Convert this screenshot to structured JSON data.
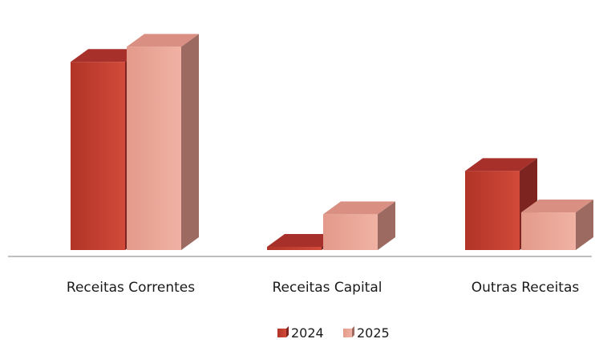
{
  "chart_data": {
    "type": "bar",
    "categories": [
      "Receitas Correntes",
      "Receitas Capital",
      "Outras Receitas"
    ],
    "series": [
      {
        "name": "2024",
        "values": [
          100,
          1.5,
          42
        ]
      },
      {
        "name": "2025",
        "values": [
          108,
          19,
          20
        ]
      }
    ],
    "title": "",
    "xlabel": "",
    "ylabel": "",
    "ylim": [
      0,
      115
    ],
    "legend_position": "bottom",
    "grid": false,
    "colors": {
      "2024": {
        "front": "#c0392b",
        "top": "#a8302a",
        "side": "#7d2320"
      },
      "2025": {
        "front": "#e8a394",
        "top": "#d98f82",
        "side": "#9c6a61"
      }
    }
  }
}
